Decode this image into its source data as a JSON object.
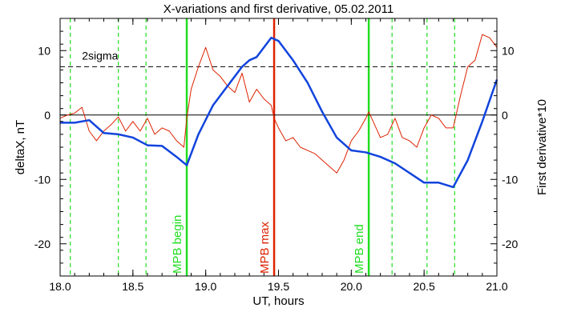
{
  "chart_data": {
    "type": "line",
    "title": "X-variations and first derivative, 05.02.2011",
    "xlabel": "UT, hours",
    "ylabel_left": "deltaX, nT",
    "ylabel_right": "First derivative*10",
    "xlim": [
      18.0,
      21.0
    ],
    "ylim": [
      -25,
      15
    ],
    "xticks": [
      "18.0",
      "18.5",
      "19.0",
      "19.5",
      "20.0",
      "20.5",
      "21.0"
    ],
    "yticks_left": [
      "10",
      "0",
      "-10",
      "-20"
    ],
    "yticks_right": [
      "10",
      "0",
      "-10",
      "-20"
    ],
    "threshold": {
      "label": "2sigma",
      "y": 7.5
    },
    "zero_line_y": 0,
    "vlines_dashed_x": [
      18.07,
      18.4,
      18.59,
      20.28,
      20.52,
      20.71
    ],
    "vlines_solid": [
      {
        "x": 18.87,
        "label": "MPB begin",
        "color": "#22dd22"
      },
      {
        "x": 19.47,
        "label": "MPB max",
        "color": "#dd2200"
      },
      {
        "x": 20.12,
        "label": "MPB end",
        "color": "#22dd22"
      }
    ],
    "series": [
      {
        "name": "deltaX, nT",
        "color": "#1144dd",
        "x": [
          18.0,
          18.1,
          18.2,
          18.3,
          18.4,
          18.5,
          18.6,
          18.7,
          18.8,
          18.87,
          18.95,
          19.05,
          19.15,
          19.25,
          19.3,
          19.35,
          19.4,
          19.45,
          19.5,
          19.6,
          19.7,
          19.8,
          19.9,
          20.0,
          20.1,
          20.2,
          20.3,
          20.4,
          20.5,
          20.6,
          20.7,
          20.8,
          20.9,
          21.0
        ],
        "values": [
          -1.2,
          -1.2,
          -0.8,
          -2.8,
          -3.0,
          -3.5,
          -4.7,
          -4.8,
          -6.5,
          -7.8,
          -3.0,
          1.5,
          4.5,
          7.5,
          8.5,
          9.0,
          10.5,
          12.0,
          11.5,
          8.5,
          5.0,
          0.5,
          -3.5,
          -5.5,
          -5.8,
          -6.5,
          -7.5,
          -9.0,
          -10.5,
          -10.5,
          -11.2,
          -7.0,
          -1.0,
          5.5
        ]
      },
      {
        "name": "First derivative*10",
        "color": "#dd2200",
        "x": [
          18.0,
          18.05,
          18.1,
          18.15,
          18.2,
          18.25,
          18.3,
          18.35,
          18.4,
          18.45,
          18.5,
          18.55,
          18.6,
          18.65,
          18.7,
          18.75,
          18.8,
          18.85,
          18.87,
          18.9,
          18.95,
          19.0,
          19.05,
          19.1,
          19.15,
          19.2,
          19.25,
          19.3,
          19.35,
          19.4,
          19.45,
          19.47,
          19.5,
          19.55,
          19.6,
          19.65,
          19.7,
          19.75,
          19.8,
          19.85,
          19.9,
          19.95,
          20.0,
          20.05,
          20.1,
          20.12,
          20.15,
          20.2,
          20.25,
          20.3,
          20.35,
          20.4,
          20.45,
          20.5,
          20.55,
          20.6,
          20.65,
          20.7,
          20.75,
          20.8,
          20.85,
          20.9,
          20.95,
          21.0
        ],
        "values": [
          -0.5,
          0,
          0.3,
          1.2,
          -2.5,
          -4.0,
          -2.5,
          -1.5,
          -0.3,
          -2.5,
          -1.0,
          -2.5,
          -0.5,
          -3.0,
          -2.0,
          -2.5,
          -4.0,
          -5.0,
          -0.5,
          4.0,
          7.5,
          10.5,
          7.0,
          6.0,
          4.5,
          3.5,
          6.5,
          2.0,
          4.0,
          2.5,
          1.5,
          -0.5,
          -2.0,
          -4.0,
          -3.5,
          -5.0,
          -5.5,
          -6.0,
          -7.0,
          -8.0,
          -9.0,
          -7.0,
          -4.0,
          -2.5,
          -0.5,
          0.5,
          -1.0,
          -3.5,
          -3.0,
          -0.5,
          -3.5,
          -4.0,
          -5.0,
          -2.0,
          0,
          -0.5,
          -2.0,
          -2.0,
          3.0,
          7.5,
          8.5,
          12.5,
          12.0,
          10.5
        ]
      }
    ]
  }
}
